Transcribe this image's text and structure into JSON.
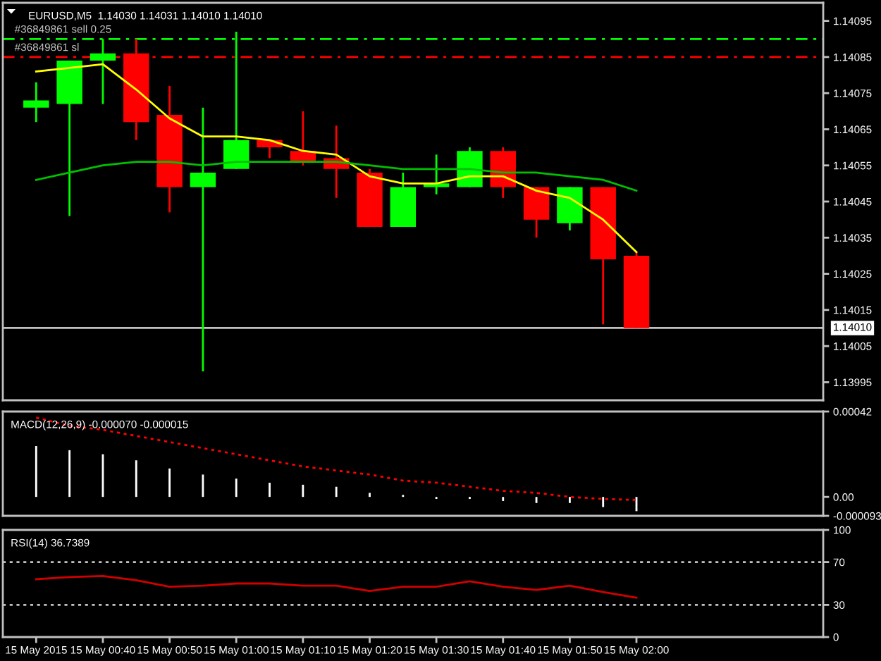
{
  "chart_data": [
    {
      "type": "candlestick",
      "title": "EURUSD,M5  1.14030 1.14031 1.14010 1.14010",
      "x": [
        "2015-05-15T00:30",
        "2015-05-15T00:35",
        "2015-05-15T00:40",
        "2015-05-15T00:45",
        "2015-05-15T00:50",
        "2015-05-15T00:55",
        "2015-05-15T01:00",
        "2015-05-15T01:05",
        "2015-05-15T01:10",
        "2015-05-15T01:15",
        "2015-05-15T01:20",
        "2015-05-15T01:25",
        "2015-05-15T01:30",
        "2015-05-15T01:35",
        "2015-05-15T01:40",
        "2015-05-15T01:45",
        "2015-05-15T01:50",
        "2015-05-15T01:55",
        "2015-05-15T02:00"
      ],
      "ohlc": [
        [
          1.14071,
          1.14078,
          1.14067,
          1.14073
        ],
        [
          1.14072,
          1.14084,
          1.14041,
          1.14084
        ],
        [
          1.14084,
          1.1409,
          1.14072,
          1.14086
        ],
        [
          1.14086,
          1.1409,
          1.14062,
          1.14067
        ],
        [
          1.14069,
          1.14077,
          1.14042,
          1.14049
        ],
        [
          1.14049,
          1.14071,
          1.13998,
          1.14053
        ],
        [
          1.14054,
          1.14092,
          1.14054,
          1.14062
        ],
        [
          1.14062,
          1.14062,
          1.14057,
          1.1406
        ],
        [
          1.14059,
          1.1407,
          1.14055,
          1.14056
        ],
        [
          1.14057,
          1.14066,
          1.14046,
          1.14054
        ],
        [
          1.14053,
          1.14054,
          1.14038,
          1.14038
        ],
        [
          1.14038,
          1.14053,
          1.14038,
          1.14049
        ],
        [
          1.14049,
          1.14058,
          1.14047,
          1.1405
        ],
        [
          1.14049,
          1.1406,
          1.14049,
          1.14059
        ],
        [
          1.14059,
          1.1406,
          1.14046,
          1.14049
        ],
        [
          1.14049,
          1.14049,
          1.14035,
          1.1404
        ],
        [
          1.14039,
          1.14049,
          1.14037,
          1.14049
        ],
        [
          1.14049,
          1.14049,
          1.14011,
          1.14029
        ],
        [
          1.1403,
          1.14031,
          1.1401,
          1.1401
        ]
      ],
      "colors": [
        "#00ff00",
        "#00ff00",
        "#00ff00",
        "#ff0000",
        "#ff0000",
        "#00ff00",
        "#00ff00",
        "#ff0000",
        "#ff0000",
        "#ff0000",
        "#ff0000",
        "#00ff00",
        "#00ff00",
        "#00ff00",
        "#ff0000",
        "#ff0000",
        "#00ff00",
        "#ff0000",
        "#ff0000"
      ],
      "series": [
        {
          "type": "line",
          "color": "#ffff00",
          "values": [
            1.14081,
            1.14082,
            1.14083,
            1.14076,
            1.14068,
            1.14063,
            1.14063,
            1.14062,
            1.14059,
            1.14058,
            1.14052,
            1.1405,
            1.1405,
            1.14052,
            1.14052,
            1.14048,
            1.14046,
            1.1404,
            1.14031
          ]
        },
        {
          "type": "line",
          "color": "#00c000",
          "values": [
            1.14051,
            1.14053,
            1.14055,
            1.14056,
            1.14056,
            1.14055,
            1.14056,
            1.14056,
            1.14056,
            1.14056,
            1.14055,
            1.14054,
            1.14054,
            1.14054,
            1.14053,
            1.14053,
            1.14052,
            1.14051,
            1.14048
          ]
        }
      ],
      "ref_lines": [
        {
          "axis": "y",
          "value": 1.1409,
          "label": "#36849861 sell 0.25",
          "color": "#00ff00",
          "line_style": "dashdot"
        },
        {
          "axis": "y",
          "value": 1.14085,
          "label": "#36849861 sl",
          "color": "#ff0000",
          "line_style": "dashdot"
        },
        {
          "axis": "y",
          "value": 1.1401,
          "label": "1.14010",
          "color": "#c0c0c0",
          "line_style": "solid"
        }
      ],
      "xlim": [
        "2015-05-15T00:25",
        "2015-05-15T02:28"
      ],
      "ylim": [
        1.1399,
        1.141
      ],
      "yticks": [
        1.13995,
        1.14005,
        1.14015,
        1.14025,
        1.14035,
        1.14045,
        1.14055,
        1.14065,
        1.14075,
        1.14085,
        1.14095
      ],
      "tick_labels": "y"
    },
    {
      "type": "bar",
      "title": "MACD(12,26,9) -0.000070 -0.000015",
      "x": [
        "2015-05-15T00:30",
        "2015-05-15T00:35",
        "2015-05-15T00:40",
        "2015-05-15T00:45",
        "2015-05-15T00:50",
        "2015-05-15T00:55",
        "2015-05-15T01:00",
        "2015-05-15T01:05",
        "2015-05-15T01:10",
        "2015-05-15T01:15",
        "2015-05-15T01:20",
        "2015-05-15T01:25",
        "2015-05-15T01:30",
        "2015-05-15T01:35",
        "2015-05-15T01:40",
        "2015-05-15T01:45",
        "2015-05-15T01:50",
        "2015-05-15T01:55",
        "2015-05-15T02:00"
      ],
      "series": [
        {
          "color": "#ffffff",
          "values": [
            0.00025,
            0.00023,
            0.00021,
            0.00018,
            0.00014,
            0.00011,
            9e-05,
            7e-05,
            6e-05,
            5e-05,
            2e-05,
            1e-05,
            -1e-05,
            -1e-05,
            -2e-05,
            -3e-05,
            -3e-05,
            -5e-05,
            -7e-05
          ]
        },
        {
          "type": "line",
          "color": "#ff0000",
          "line_style": "dotted",
          "values": [
            0.00039,
            0.00035,
            0.00033,
            0.0003,
            0.00027,
            0.00024,
            0.00021,
            0.00018,
            0.00015,
            0.00013,
            0.00011,
            8e-05,
            7e-05,
            5e-05,
            3e-05,
            2e-05,
            0.0,
            -1e-05,
            -1.5e-05
          ]
        }
      ],
      "xlim": [
        "2015-05-15T00:25",
        "2015-05-15T02:28"
      ],
      "ylim": [
        -9.3e-05,
        0.00042
      ],
      "yticks": [
        {
          "value": -9.3e-05,
          "label": "-0.000093"
        },
        {
          "value": 0,
          "label": "0.00"
        },
        0.00042
      ],
      "tick_labels": "y"
    },
    {
      "type": "line",
      "title": "RSI(14) 36.7389",
      "x": [
        "2015-05-15T00:30",
        "2015-05-15T00:35",
        "2015-05-15T00:40",
        "2015-05-15T00:45",
        "2015-05-15T00:50",
        "2015-05-15T00:55",
        "2015-05-15T01:00",
        "2015-05-15T01:05",
        "2015-05-15T01:10",
        "2015-05-15T01:15",
        "2015-05-15T01:20",
        "2015-05-15T01:25",
        "2015-05-15T01:30",
        "2015-05-15T01:35",
        "2015-05-15T01:40",
        "2015-05-15T01:45",
        "2015-05-15T01:50",
        "2015-05-15T01:55",
        "2015-05-15T02:00"
      ],
      "series": [
        {
          "color": "#d00000",
          "values": [
            54,
            56,
            57,
            53,
            47,
            48,
            50,
            50,
            48,
            48,
            43,
            47,
            47,
            52,
            47,
            44,
            48,
            42,
            36.7389
          ]
        }
      ],
      "ref_lines": [
        {
          "axis": "y",
          "value": 70,
          "color": "#c0c0c0",
          "line_style": "dotted"
        },
        {
          "axis": "y",
          "value": 30,
          "color": "#c0c0c0",
          "line_style": "dotted"
        }
      ],
      "xlim": [
        "2015-05-15T00:25",
        "2015-05-15T02:28"
      ],
      "xticks": [
        {
          "value": "2015-05-15T00:30",
          "label": "15 May 2015"
        },
        {
          "value": "2015-05-15T00:40",
          "label": "15 May 00:40"
        },
        {
          "value": "2015-05-15T00:50",
          "label": "15 May 00:50"
        },
        {
          "value": "2015-05-15T01:00",
          "label": "15 May 01:00"
        },
        {
          "value": "2015-05-15T01:10",
          "label": "15 May 01:10"
        },
        {
          "value": "2015-05-15T01:20",
          "label": "15 May 01:20"
        },
        {
          "value": "2015-05-15T01:30",
          "label": "15 May 01:30"
        },
        {
          "value": "2015-05-15T01:40",
          "label": "15 May 01:40"
        },
        {
          "value": "2015-05-15T01:50",
          "label": "15 May 01:50"
        },
        {
          "value": "2015-05-15T02:00",
          "label": "15 May 02:00"
        }
      ],
      "ylim": [
        0,
        100
      ],
      "yticks": [
        0,
        30,
        70,
        100
      ]
    }
  ]
}
